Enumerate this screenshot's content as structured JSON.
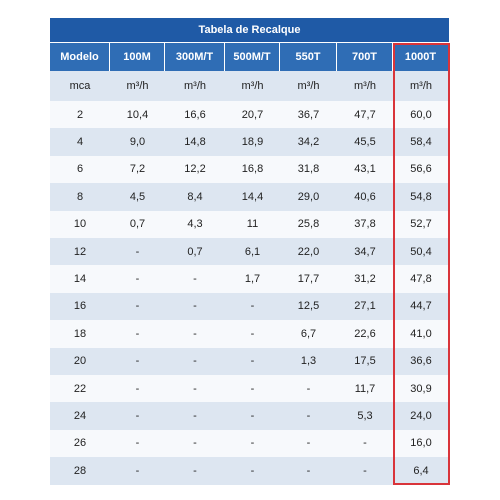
{
  "header": {
    "title": "Tabela de Recalque"
  },
  "table": {
    "columns": [
      "Modelo",
      "100M",
      "300M/T",
      "500M/T",
      "550T",
      "700T",
      "1000T"
    ],
    "units": [
      "mca",
      "m³/h",
      "m³/h",
      "m³/h",
      "m³/h",
      "m³/h",
      "m³/h"
    ],
    "rows": [
      [
        "2",
        "10,4",
        "16,6",
        "20,7",
        "36,7",
        "47,7",
        "60,0"
      ],
      [
        "4",
        "9,0",
        "14,8",
        "18,9",
        "34,2",
        "45,5",
        "58,4"
      ],
      [
        "6",
        "7,2",
        "12,2",
        "16,8",
        "31,8",
        "43,1",
        "56,6"
      ],
      [
        "8",
        "4,5",
        "8,4",
        "14,4",
        "29,0",
        "40,6",
        "54,8"
      ],
      [
        "10",
        "0,7",
        "4,3",
        "11",
        "25,8",
        "37,8",
        "52,7"
      ],
      [
        "12",
        "-",
        "0,7",
        "6,1",
        "22,0",
        "34,7",
        "50,4"
      ],
      [
        "14",
        "-",
        "-",
        "1,7",
        "17,7",
        "31,2",
        "47,8"
      ],
      [
        "16",
        "-",
        "-",
        "-",
        "12,5",
        "27,1",
        "44,7"
      ],
      [
        "18",
        "-",
        "-",
        "-",
        "6,7",
        "22,6",
        "41,0"
      ],
      [
        "20",
        "-",
        "-",
        "-",
        "1,3",
        "17,5",
        "36,6"
      ],
      [
        "22",
        "-",
        "-",
        "-",
        "-",
        "11,7",
        "30,9"
      ],
      [
        "24",
        "-",
        "-",
        "-",
        "-",
        "5,3",
        "24,0"
      ],
      [
        "26",
        "-",
        "-",
        "-",
        "-",
        "-",
        "16,0"
      ],
      [
        "28",
        "-",
        "-",
        "-",
        "-",
        "-",
        "6,4"
      ]
    ]
  }
}
